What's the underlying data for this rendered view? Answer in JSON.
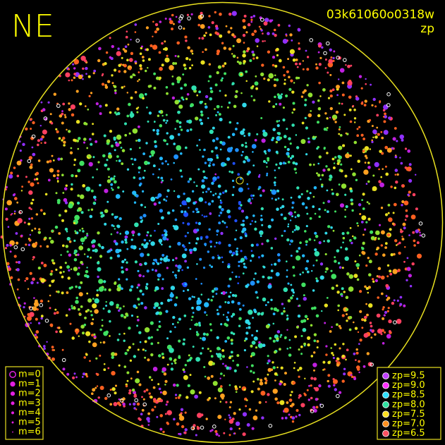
{
  "corner_label": "NE",
  "image_id": "03k61060o0318w",
  "mode_label": "zp",
  "magnitude_legend": [
    "m=0",
    "m=1",
    "m=2",
    "m=3",
    "m=4",
    "m=5",
    "m=6"
  ],
  "zp_legend": [
    "zp=9.5",
    "zp=9.0",
    "zp=8.5",
    "zp=8.0",
    "zp=7.5",
    "zp=7.0",
    "zp=6.5"
  ]
}
